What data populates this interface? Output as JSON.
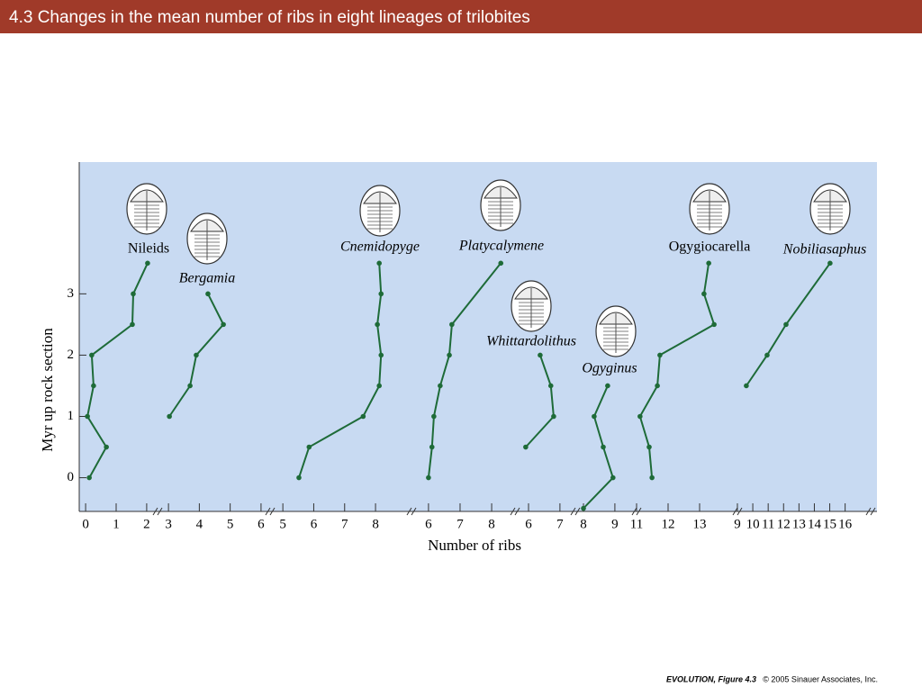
{
  "header": {
    "title": "4.3  Changes in the mean number of ribs in eight lineages of trilobites"
  },
  "chart_data": {
    "type": "line",
    "xlabel": "Number of ribs",
    "ylabel": "Myr up rock section",
    "color": "#1e6b38",
    "background": "#c8daf2",
    "ylim": [
      -0.55,
      5.15
    ],
    "yticks": [
      0,
      1,
      2,
      3
    ],
    "series": [
      {
        "name": "Nileids",
        "xlim": [
          -0.15,
          2.15
        ],
        "xticks": [
          0,
          1,
          2
        ],
        "x": [
          0.12,
          0.68,
          0.06,
          0.26,
          0.2,
          1.53,
          1.56,
          2.03
        ],
        "values": [
          0,
          0.5,
          1,
          1.5,
          2,
          2.5,
          3,
          3.5
        ]
      },
      {
        "name": "Bergamia",
        "xlim": [
          2.88,
          6.09
        ],
        "xticks": [
          3,
          4,
          5,
          6
        ],
        "x": [
          3.03,
          3.7,
          3.9,
          4.78,
          4.28
        ],
        "values": [
          1,
          1.5,
          2,
          2.5,
          3
        ]
      },
      {
        "name": "Cnemidopyge",
        "xlim": [
          4.85,
          8.96
        ],
        "xticks": [
          5,
          6,
          7,
          8
        ],
        "x": [
          5.52,
          5.85,
          7.6,
          8.12,
          8.18,
          8.06,
          8.18,
          8.12
        ],
        "values": [
          0,
          0.5,
          1,
          1.5,
          2,
          2.5,
          3,
          3.5
        ]
      },
      {
        "name": "Platycalymene",
        "xlim": [
          5.49,
          8.54
        ],
        "xticks": [
          6,
          7,
          8
        ],
        "x": [
          6.0,
          6.11,
          6.17,
          6.37,
          6.66,
          6.74,
          8.29
        ],
        "values": [
          0,
          0.5,
          1,
          1.5,
          2,
          2.5,
          3.5
        ]
      },
      {
        "name": "Whittardolithus",
        "xlim": [
          5.57,
          7.29
        ],
        "xticks": [
          6,
          7
        ],
        "x": [
          5.91,
          6.8,
          6.71,
          6.37
        ],
        "values": [
          0.5,
          1,
          1.5,
          2
        ]
      },
      {
        "name": "Ogyginus",
        "xlim": [
          7.77,
          9.49
        ],
        "xticks": [
          8,
          9
        ],
        "x": [
          8.0,
          8.94,
          8.63,
          8.34,
          8.77
        ],
        "values": [
          -0.5,
          0,
          0.5,
          1,
          1.5
        ]
      },
      {
        "name": "Ogygiocarella",
        "xlim": [
          10.8,
          14.0
        ],
        "xticks": [
          11,
          12,
          13
        ],
        "x": [
          11.49,
          11.4,
          11.11,
          11.66,
          11.74,
          13.46,
          13.14,
          13.29
        ],
        "values": [
          0,
          0.5,
          1,
          1.5,
          2,
          2.5,
          3,
          3.5
        ]
      },
      {
        "name": "Nobiliasaphus",
        "xlim": [
          8.65,
          17.25
        ],
        "xticks": [
          9,
          10,
          11,
          12,
          13,
          14,
          15,
          16
        ],
        "x": [
          9.58,
          10.93,
          12.16,
          15.02
        ],
        "values": [
          1.5,
          2,
          2.5,
          3.5
        ]
      }
    ]
  },
  "footer": {
    "figure": "EVOLUTION, Figure 4.3",
    "credit": "© 2005 Sinauer Associates, Inc."
  }
}
